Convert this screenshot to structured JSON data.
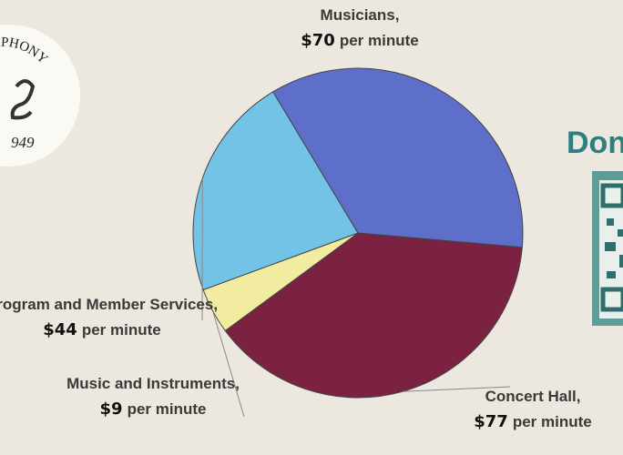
{
  "logo": {
    "text": "SYMPHONY",
    "year": "949"
  },
  "donate": "Don",
  "chart_data": {
    "type": "pie",
    "categories": [
      "Concert Hall",
      "Music and Instruments",
      "Program and Member Services",
      "Musicians"
    ],
    "values": [
      77,
      9,
      44,
      70
    ],
    "value_labels": [
      "$77",
      "$9",
      "$44",
      "$70"
    ],
    "separator": ",",
    "unit": "per minute",
    "colors": [
      "#7b2142",
      "#f1eca0",
      "#72c3e6",
      "#5d6fc8"
    ]
  }
}
